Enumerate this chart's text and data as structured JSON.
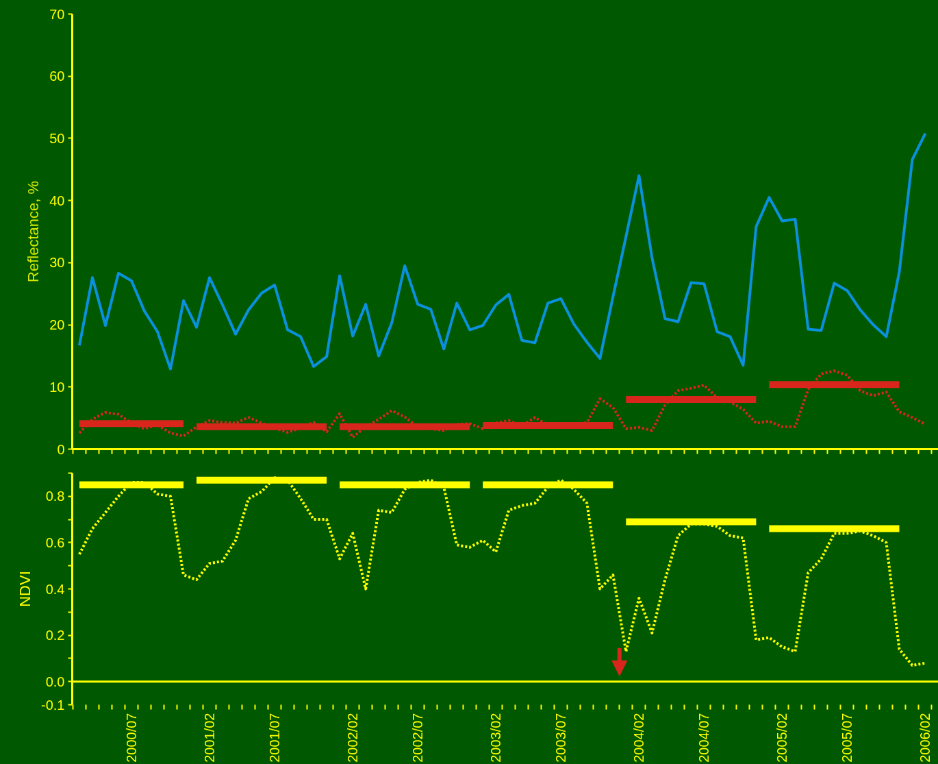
{
  "chart_data": [
    {
      "type": "line",
      "ylabel": "Reflectance, %",
      "tick_labels": "y",
      "categories": [
        null,
        null,
        null,
        null,
        "2000/07",
        null,
        null,
        null,
        null,
        null,
        "2001/02",
        null,
        null,
        null,
        null,
        "2001/07",
        null,
        null,
        null,
        null,
        null,
        "2002/02",
        null,
        null,
        null,
        null,
        "2002/07",
        null,
        null,
        null,
        null,
        null,
        "2003/02",
        null,
        null,
        null,
        null,
        "2003/07",
        null,
        null,
        null,
        null,
        null,
        "2004/02",
        null,
        null,
        null,
        null,
        "2004/07",
        null,
        null,
        null,
        null,
        null,
        "2005/02",
        null,
        null,
        null,
        null,
        "2005/07",
        null,
        null,
        null,
        null,
        null,
        "2006/02"
      ],
      "ylim": [
        0,
        70
      ],
      "yticks": [
        0,
        10,
        20,
        30,
        40,
        50,
        60,
        70
      ],
      "series": [
        {
          "color": "#0a90dc",
          "line_style": "solid",
          "values": [
            16.7,
            27.6,
            19.9,
            28.3,
            27.1,
            22.2,
            18.9,
            12.9,
            23.9,
            19.6,
            27.6,
            23.2,
            18.5,
            22.4,
            25.1,
            26.4,
            19.2,
            18.1,
            13.3,
            14.9,
            27.9,
            18.2,
            23.3,
            15.0,
            20.3,
            29.5,
            23.3,
            22.5,
            16.1,
            23.5,
            19.2,
            19.9,
            23.2,
            24.9,
            17.5,
            17.1,
            23.5,
            24.2,
            20.1,
            17.2,
            14.6,
            24.5,
            34.2,
            44.0,
            30.8,
            21.0,
            20.5,
            26.8,
            26.6,
            18.9,
            18.1,
            13.5,
            35.8,
            40.5,
            36.7,
            37.0,
            19.3,
            19.1,
            26.7,
            25.5,
            22.4,
            20.0,
            18.1,
            28.5,
            46.6,
            50.8
          ]
        },
        {
          "color": "#d9261c",
          "line_style": "dotted",
          "values": [
            2.6,
            4.8,
            5.9,
            5.6,
            4.2,
            3.3,
            3.9,
            2.6,
            2.1,
            3.6,
            4.6,
            4.3,
            4.2,
            5.1,
            4.2,
            3.4,
            2.7,
            3.4,
            4.3,
            2.8,
            5.7,
            1.9,
            3.6,
            4.8,
            6.2,
            5.2,
            3.6,
            3.3,
            3.0,
            4.0,
            4.1,
            3.3,
            4.2,
            4.6,
            3.7,
            5.1,
            3.9,
            3.9,
            3.9,
            4.3,
            8.1,
            6.7,
            3.3,
            3.5,
            3.0,
            7.1,
            9.4,
            9.8,
            10.3,
            8.3,
            7.6,
            6.4,
            4.2,
            4.5,
            3.6,
            3.6,
            9.6,
            12.1,
            12.6,
            11.9,
            9.4,
            8.6,
            9.2,
            6.0,
            5.1,
            4.0
          ]
        },
        {
          "color": "#d9261c",
          "line_style": "solid",
          "values": [
            4.1,
            4.1,
            4.1,
            4.1,
            4.1,
            4.1,
            4.1,
            4.1,
            4.1,
            null,
            null,
            null,
            null,
            null,
            null,
            null,
            null,
            null,
            null,
            null,
            null,
            null,
            null,
            null,
            null,
            null,
            null,
            null,
            null,
            null,
            null,
            null,
            null,
            null,
            null,
            null,
            null,
            null,
            null,
            null,
            null,
            null,
            null,
            null,
            null,
            null,
            null,
            null,
            null,
            null,
            null,
            null,
            null,
            null,
            null,
            null,
            null,
            null,
            null,
            null,
            null,
            null,
            null,
            null,
            null,
            null
          ]
        },
        {
          "color": "#d9261c",
          "line_style": "solid",
          "values": [
            null,
            null,
            null,
            null,
            null,
            null,
            null,
            null,
            null,
            3.6,
            3.6,
            3.6,
            3.6,
            3.6,
            3.6,
            3.6,
            3.6,
            3.6,
            3.6,
            3.6,
            null,
            null,
            null,
            null,
            null,
            null,
            null,
            null,
            null,
            null,
            null,
            null,
            null,
            null,
            null,
            null,
            null,
            null,
            null,
            null,
            null,
            null,
            null,
            null,
            null,
            null,
            null,
            null,
            null,
            null,
            null,
            null,
            null,
            null,
            null,
            null,
            null,
            null,
            null,
            null,
            null,
            null,
            null,
            null,
            null,
            null
          ]
        },
        {
          "color": "#d9261c",
          "line_style": "solid",
          "values": [
            null,
            null,
            null,
            null,
            null,
            null,
            null,
            null,
            null,
            null,
            null,
            null,
            null,
            null,
            null,
            null,
            null,
            null,
            null,
            null,
            3.6,
            3.6,
            3.6,
            3.6,
            3.6,
            3.6,
            3.6,
            3.6,
            3.6,
            3.6,
            3.6,
            null,
            null,
            null,
            null,
            null,
            null,
            null,
            null,
            null,
            null,
            null,
            null,
            null,
            null,
            null,
            null,
            null,
            null,
            null,
            null,
            null,
            null,
            null,
            null,
            null,
            null,
            null,
            null,
            null,
            null,
            null,
            null,
            null,
            null,
            null
          ]
        },
        {
          "color": "#d9261c",
          "line_style": "solid",
          "values": [
            null,
            null,
            null,
            null,
            null,
            null,
            null,
            null,
            null,
            null,
            null,
            null,
            null,
            null,
            null,
            null,
            null,
            null,
            null,
            null,
            null,
            null,
            null,
            null,
            null,
            null,
            null,
            null,
            null,
            null,
            null,
            3.8,
            3.8,
            3.8,
            3.8,
            3.8,
            3.8,
            3.8,
            3.8,
            3.8,
            3.8,
            3.8,
            null,
            null,
            null,
            null,
            null,
            null,
            null,
            null,
            null,
            null,
            null,
            null,
            null,
            null,
            null,
            null,
            null,
            null,
            null,
            null,
            null,
            null,
            null,
            null
          ]
        },
        {
          "color": "#d9261c",
          "line_style": "solid",
          "values": [
            null,
            null,
            null,
            null,
            null,
            null,
            null,
            null,
            null,
            null,
            null,
            null,
            null,
            null,
            null,
            null,
            null,
            null,
            null,
            null,
            null,
            null,
            null,
            null,
            null,
            null,
            null,
            null,
            null,
            null,
            null,
            null,
            null,
            null,
            null,
            null,
            null,
            null,
            null,
            null,
            null,
            null,
            8.0,
            8.0,
            8.0,
            8.0,
            8.0,
            8.0,
            8.0,
            8.0,
            8.0,
            8.0,
            8.0,
            null,
            null,
            null,
            null,
            null,
            null,
            null,
            null,
            null,
            null,
            null,
            null,
            null
          ]
        },
        {
          "color": "#d9261c",
          "line_style": "solid",
          "values": [
            null,
            null,
            null,
            null,
            null,
            null,
            null,
            null,
            null,
            null,
            null,
            null,
            null,
            null,
            null,
            null,
            null,
            null,
            null,
            null,
            null,
            null,
            null,
            null,
            null,
            null,
            null,
            null,
            null,
            null,
            null,
            null,
            null,
            null,
            null,
            null,
            null,
            null,
            null,
            null,
            null,
            null,
            null,
            null,
            null,
            null,
            null,
            null,
            null,
            null,
            null,
            null,
            null,
            10.4,
            10.4,
            10.4,
            10.4,
            10.4,
            10.4,
            10.4,
            10.4,
            10.4,
            10.4,
            10.4,
            null,
            null
          ]
        }
      ]
    },
    {
      "type": "line",
      "ylabel": "NDVI",
      "categories": [
        null,
        null,
        null,
        null,
        "2000/07",
        null,
        null,
        null,
        null,
        null,
        "2001/02",
        null,
        null,
        null,
        null,
        "2001/07",
        null,
        null,
        null,
        null,
        null,
        "2002/02",
        null,
        null,
        null,
        null,
        "2002/07",
        null,
        null,
        null,
        null,
        null,
        "2003/02",
        null,
        null,
        null,
        null,
        "2003/07",
        null,
        null,
        null,
        null,
        null,
        "2004/02",
        null,
        null,
        null,
        null,
        "2004/07",
        null,
        null,
        null,
        null,
        null,
        "2005/02",
        null,
        null,
        null,
        null,
        "2005/07",
        null,
        null,
        null,
        null,
        null,
        "2006/02"
      ],
      "ylim": [
        -0.1,
        0.9
      ],
      "yticks": [
        {
          "value": -0.1,
          "label": "-0.1"
        },
        {
          "value": 0,
          "label": "0.0"
        },
        {
          "value": 0.1,
          "label": null
        },
        {
          "value": 0.2,
          "label": "0.2"
        },
        {
          "value": 0.3,
          "label": null
        },
        {
          "value": 0.4,
          "label": "0.4"
        },
        {
          "value": 0.5,
          "label": null
        },
        {
          "value": 0.6,
          "label": "0.6"
        },
        {
          "value": 0.7,
          "label": null
        },
        {
          "value": 0.8,
          "label": "0.8"
        },
        {
          "value": 0.9,
          "label": null
        }
      ],
      "ref_lines": [
        {
          "axis": "y",
          "value": 0,
          "color": "#ffff00"
        }
      ],
      "series": [
        {
          "color": "#ffff00",
          "line_style": "dotted",
          "values": [
            0.55,
            0.66,
            0.73,
            0.8,
            0.86,
            0.86,
            0.81,
            0.8,
            0.46,
            0.44,
            0.51,
            0.52,
            0.61,
            0.79,
            0.82,
            0.88,
            0.87,
            0.79,
            0.7,
            0.7,
            0.53,
            0.64,
            0.4,
            0.74,
            0.73,
            0.83,
            0.86,
            0.87,
            0.84,
            0.59,
            0.58,
            0.61,
            0.56,
            0.74,
            0.76,
            0.77,
            0.84,
            0.87,
            0.83,
            0.77,
            0.4,
            0.46,
            0.13,
            0.36,
            0.21,
            0.44,
            0.63,
            0.68,
            0.68,
            0.67,
            0.63,
            0.62,
            0.18,
            0.19,
            0.15,
            0.13,
            0.47,
            0.53,
            0.64,
            0.64,
            0.65,
            0.63,
            0.6,
            0.14,
            0.07,
            0.08
          ]
        },
        {
          "color": "#ffff00",
          "line_style": "solid",
          "values": [
            0.85,
            0.85,
            0.85,
            0.85,
            0.85,
            0.85,
            0.85,
            0.85,
            0.85,
            null,
            null,
            null,
            null,
            null,
            null,
            null,
            null,
            null,
            null,
            null,
            null,
            null,
            null,
            null,
            null,
            null,
            null,
            null,
            null,
            null,
            null,
            null,
            null,
            null,
            null,
            null,
            null,
            null,
            null,
            null,
            null,
            null,
            null,
            null,
            null,
            null,
            null,
            null,
            null,
            null,
            null,
            null,
            null,
            null,
            null,
            null,
            null,
            null,
            null,
            null,
            null,
            null,
            null,
            null,
            null,
            null
          ]
        },
        {
          "color": "#ffff00",
          "line_style": "solid",
          "values": [
            null,
            null,
            null,
            null,
            null,
            null,
            null,
            null,
            null,
            0.87,
            0.87,
            0.87,
            0.87,
            0.87,
            0.87,
            0.87,
            0.87,
            0.87,
            0.87,
            0.87,
            null,
            null,
            null,
            null,
            null,
            null,
            null,
            null,
            null,
            null,
            null,
            null,
            null,
            null,
            null,
            null,
            null,
            null,
            null,
            null,
            null,
            null,
            null,
            null,
            null,
            null,
            null,
            null,
            null,
            null,
            null,
            null,
            null,
            null,
            null,
            null,
            null,
            null,
            null,
            null,
            null,
            null,
            null,
            null,
            null,
            null
          ]
        },
        {
          "color": "#ffff00",
          "line_style": "solid",
          "values": [
            null,
            null,
            null,
            null,
            null,
            null,
            null,
            null,
            null,
            null,
            null,
            null,
            null,
            null,
            null,
            null,
            null,
            null,
            null,
            null,
            0.85,
            0.85,
            0.85,
            0.85,
            0.85,
            0.85,
            0.85,
            0.85,
            0.85,
            0.85,
            0.85,
            null,
            null,
            null,
            null,
            null,
            null,
            null,
            null,
            null,
            null,
            null,
            null,
            null,
            null,
            null,
            null,
            null,
            null,
            null,
            null,
            null,
            null,
            null,
            null,
            null,
            null,
            null,
            null,
            null,
            null,
            null,
            null,
            null,
            null,
            null
          ]
        },
        {
          "color": "#ffff00",
          "line_style": "solid",
          "values": [
            null,
            null,
            null,
            null,
            null,
            null,
            null,
            null,
            null,
            null,
            null,
            null,
            null,
            null,
            null,
            null,
            null,
            null,
            null,
            null,
            null,
            null,
            null,
            null,
            null,
            null,
            null,
            null,
            null,
            null,
            null,
            0.85,
            0.85,
            0.85,
            0.85,
            0.85,
            0.85,
            0.85,
            0.85,
            0.85,
            0.85,
            0.85,
            null,
            null,
            null,
            null,
            null,
            null,
            null,
            null,
            null,
            null,
            null,
            null,
            null,
            null,
            null,
            null,
            null,
            null,
            null,
            null,
            null,
            null,
            null,
            null
          ]
        },
        {
          "color": "#ffff00",
          "line_style": "solid",
          "values": [
            null,
            null,
            null,
            null,
            null,
            null,
            null,
            null,
            null,
            null,
            null,
            null,
            null,
            null,
            null,
            null,
            null,
            null,
            null,
            null,
            null,
            null,
            null,
            null,
            null,
            null,
            null,
            null,
            null,
            null,
            null,
            null,
            null,
            null,
            null,
            null,
            null,
            null,
            null,
            null,
            null,
            null,
            0.69,
            0.69,
            0.69,
            0.69,
            0.69,
            0.69,
            0.69,
            0.69,
            0.69,
            0.69,
            0.69,
            null,
            null,
            null,
            null,
            null,
            null,
            null,
            null,
            null,
            null,
            null,
            null,
            null
          ]
        },
        {
          "color": "#ffff00",
          "line_style": "solid",
          "values": [
            null,
            null,
            null,
            null,
            null,
            null,
            null,
            null,
            null,
            null,
            null,
            null,
            null,
            null,
            null,
            null,
            null,
            null,
            null,
            null,
            null,
            null,
            null,
            null,
            null,
            null,
            null,
            null,
            null,
            null,
            null,
            null,
            null,
            null,
            null,
            null,
            null,
            null,
            null,
            null,
            null,
            null,
            null,
            null,
            null,
            null,
            null,
            null,
            null,
            null,
            null,
            null,
            null,
            0.66,
            0.66,
            0.66,
            0.66,
            0.66,
            0.66,
            0.66,
            0.66,
            0.66,
            0.66,
            0.66,
            null,
            null
          ]
        }
      ]
    }
  ]
}
